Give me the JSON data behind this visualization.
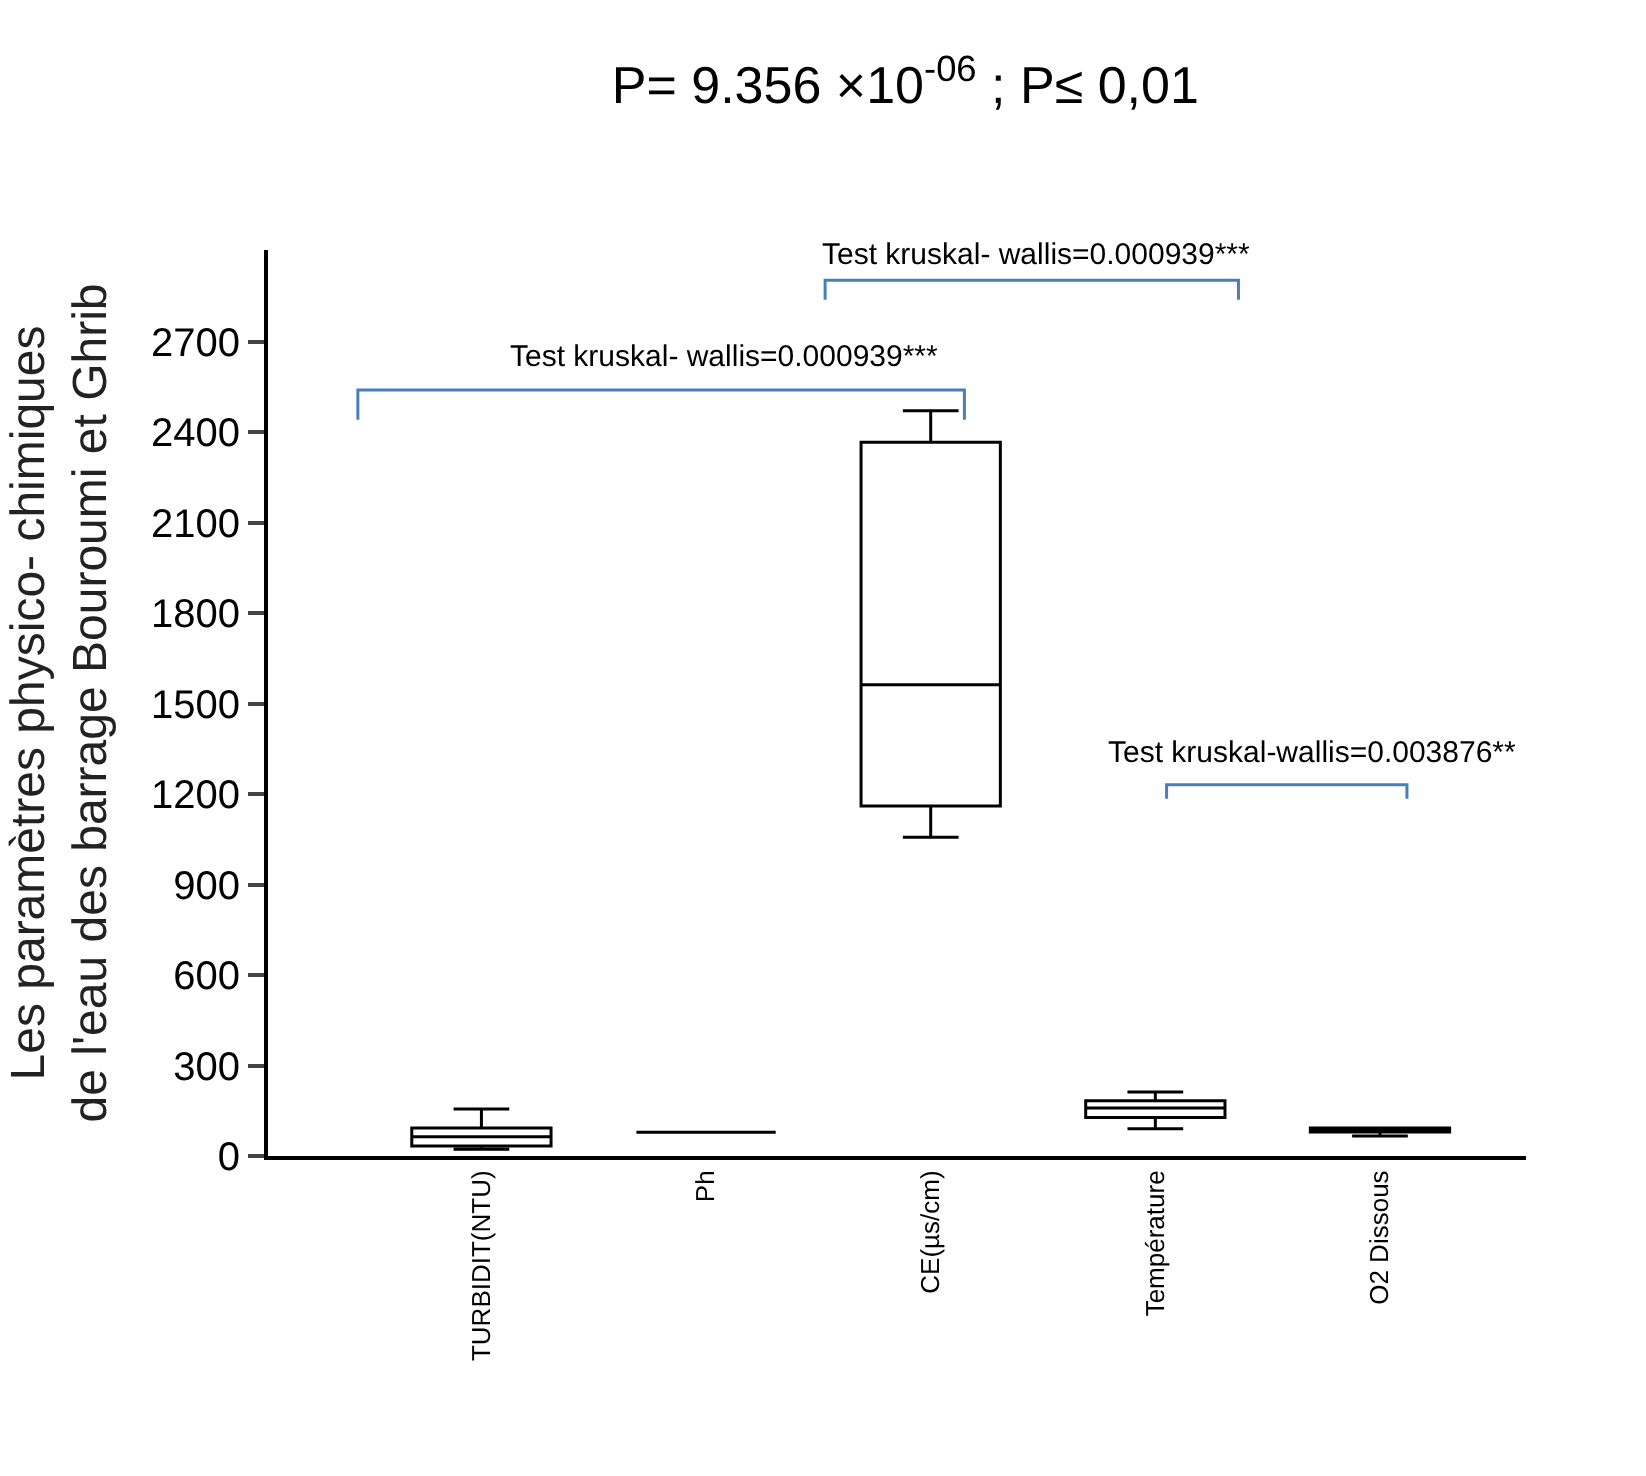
{
  "chart_data": {
    "type": "box",
    "title": "P= 9.356 ×10$^{-06}$ ; P≤ 0,01",
    "ylabel": "Les paramètres physico- chimiques\nde l'eau des barrage Bouroumi et Ghrib",
    "categories": [
      "TURBIDIT(NTU)",
      "Ph",
      "CE(µs/cm)",
      "Température",
      "O2 Dissous"
    ],
    "boxes": [
      {
        "low": 22,
        "q1": 33,
        "median": 64,
        "q3": 93,
        "high": 156
      },
      {
        "low": 79,
        "q1": 79,
        "median": 79,
        "q3": 79,
        "high": 79
      },
      {
        "low": 1057,
        "q1": 1161,
        "median": 1563,
        "q3": 2367,
        "high": 2472
      },
      {
        "low": 90,
        "q1": 128,
        "median": 159,
        "q3": 183,
        "high": 212
      },
      {
        "low": 66,
        "q1": 80,
        "median": 88,
        "q3": 93,
        "high": 93
      }
    ],
    "color": "#000000",
    "ylim": [
      0,
      3005
    ],
    "yticks": [
      0,
      300,
      600,
      900,
      1200,
      1500,
      1800,
      2100,
      2400,
      2700
    ],
    "annotations": [
      "Test kruskal- wallis=0.000939***",
      "Test kruskal- wallis=0.000939***",
      "Test kruskal-wallis=0.003876**"
    ]
  }
}
